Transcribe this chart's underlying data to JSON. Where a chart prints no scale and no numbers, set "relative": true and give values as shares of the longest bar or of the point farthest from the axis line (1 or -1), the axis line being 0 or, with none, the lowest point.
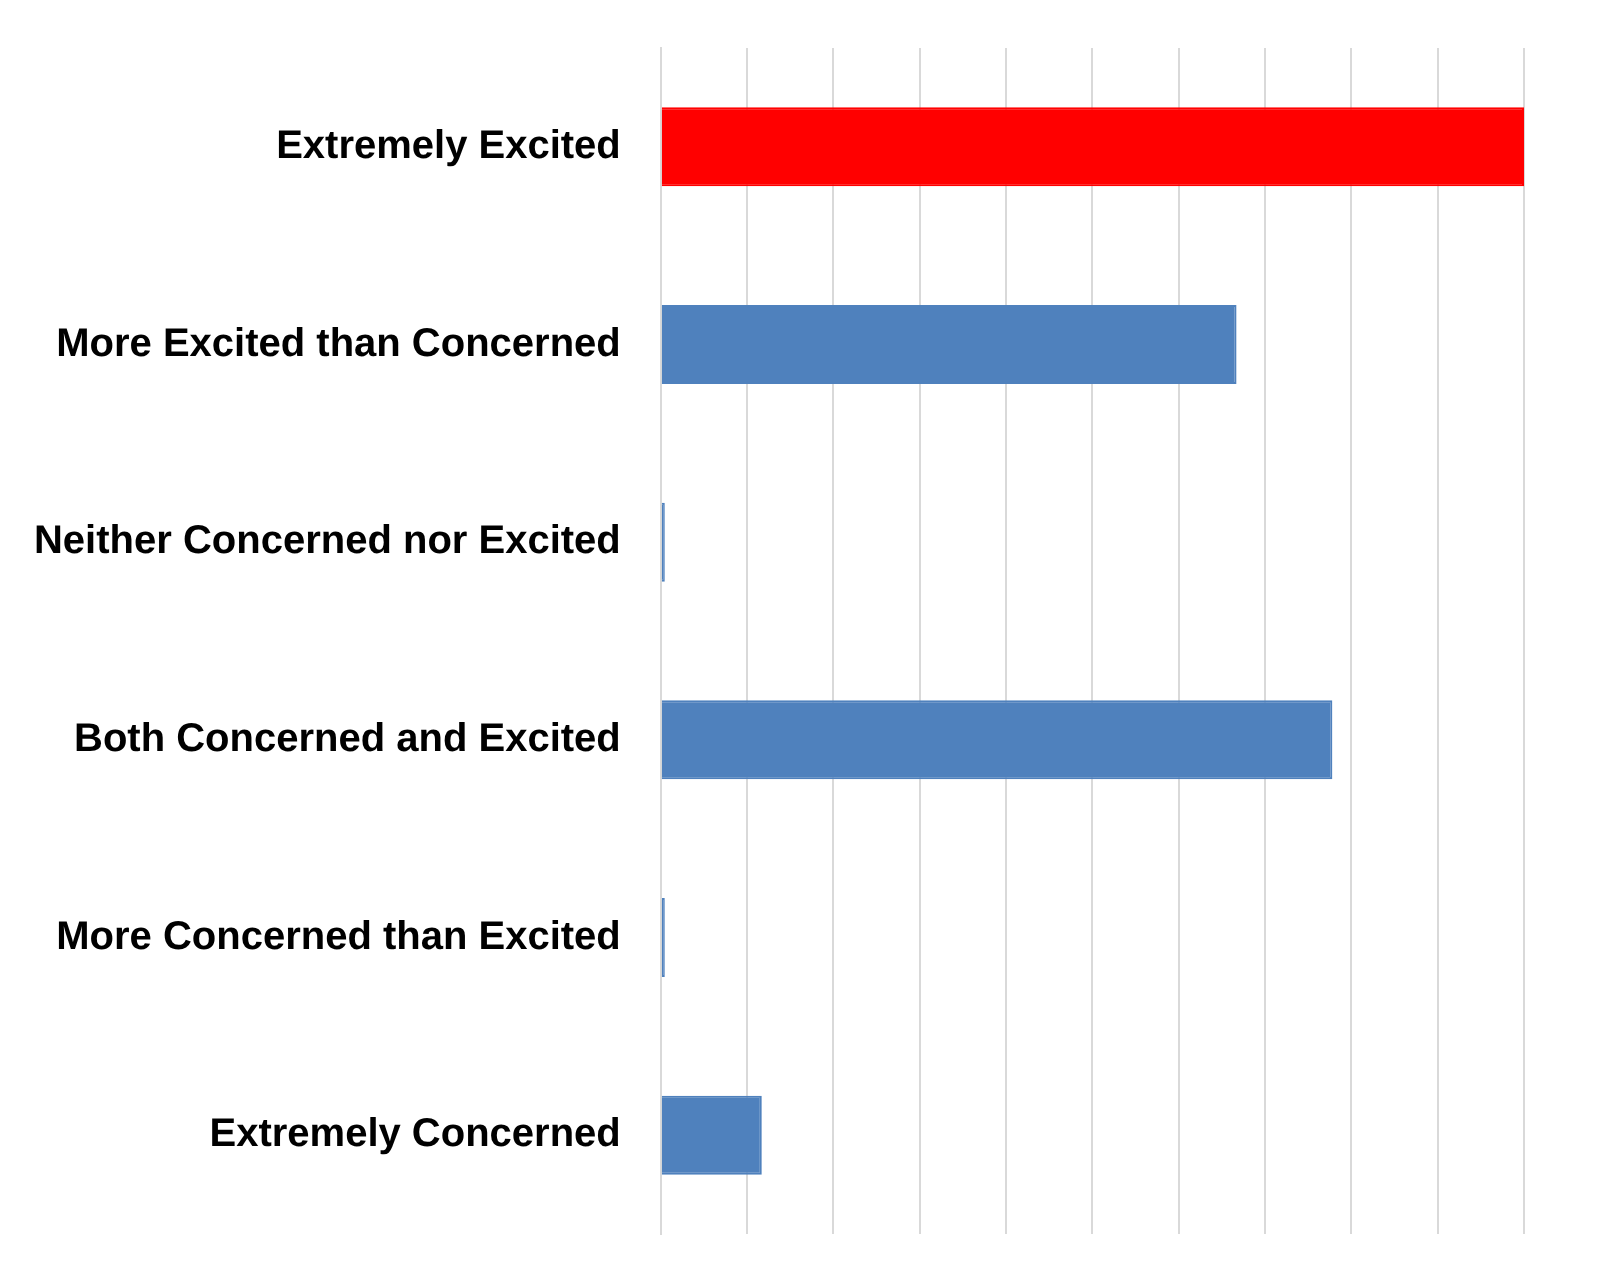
{
  "chart_data": {
    "type": "bar",
    "orientation": "horizontal",
    "relative": true,
    "grid": "x",
    "categories": [
      "Extremely Excited",
      "More Excited than Concerned",
      "Neither Concerned nor Excited",
      "Both Concerned and Excited",
      "More Concerned than Excited",
      "Extremely Concerned"
    ],
    "values": [
      1,
      0.667,
      0,
      0.778,
      0,
      0.117
    ],
    "colors": [
      "#ff0000",
      "#4f81bd",
      "#4f81bd",
      "#4f81bd",
      "#4f81bd",
      "#4f81bd"
    ]
  }
}
